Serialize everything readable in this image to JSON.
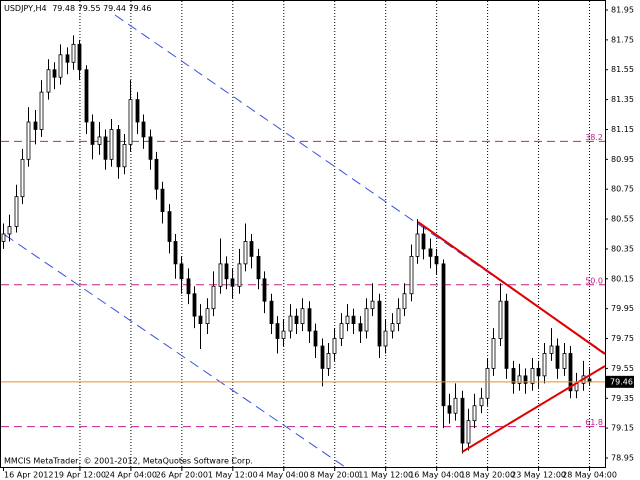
{
  "chart_data": {
    "type": "candlestick",
    "title": "USDJPY,H4",
    "footer": "MMCIS MetaTrader, © 2001-2012, MetaQuotes Software Corp.",
    "up_color": "#ffffff",
    "down_color": "#000000",
    "grid": true,
    "ylim": [
      78.95,
      81.95
    ],
    "yticks": [
      81.95,
      81.75,
      81.55,
      81.35,
      81.15,
      80.95,
      80.75,
      80.55,
      80.35,
      80.15,
      79.95,
      79.75,
      79.55,
      79.35,
      79.15,
      78.95
    ],
    "fibo_labels": [
      "38.2",
      "50.0",
      "61.8"
    ],
    "fibo_prices": [
      81.07,
      80.11,
      79.16
    ],
    "categories": [
      "16 Apr 2012",
      null,
      null,
      null,
      null,
      null,
      null,
      null,
      null,
      null,
      null,
      null,
      "19 Apr 12:00",
      null,
      null,
      null,
      null,
      null,
      null,
      null,
      "24 Apr 04:00",
      null,
      null,
      null,
      null,
      null,
      null,
      null,
      "26 Apr 20:00",
      null,
      null,
      null,
      null,
      null,
      null,
      null,
      "1 May 12:00",
      null,
      null,
      null,
      null,
      null,
      null,
      null,
      "4 May 04:00",
      null,
      null,
      null,
      null,
      null,
      null,
      null,
      "8 May 20:00",
      null,
      null,
      null,
      null,
      null,
      null,
      null,
      "11 May 12:00",
      null,
      null,
      null,
      null,
      null,
      null,
      null,
      "16 May 04:00",
      null,
      null,
      null,
      null,
      null,
      null,
      null,
      "18 May 20:00",
      null,
      null,
      null,
      null,
      null,
      null,
      null,
      "23 May 12:00",
      null,
      null,
      null,
      null,
      null,
      null,
      null,
      "28 May 04:00"
    ],
    "candles": [
      [
        80.4,
        80.52,
        80.35,
        80.45
      ],
      [
        80.45,
        80.58,
        80.4,
        80.5
      ],
      [
        80.5,
        80.78,
        80.46,
        80.7
      ],
      [
        80.7,
        81.02,
        80.65,
        80.95
      ],
      [
        80.95,
        81.3,
        80.9,
        81.2
      ],
      [
        81.2,
        81.28,
        81.05,
        81.15
      ],
      [
        81.15,
        81.48,
        81.1,
        81.4
      ],
      [
        81.4,
        81.62,
        81.35,
        81.55
      ],
      [
        81.55,
        81.6,
        81.42,
        81.5
      ],
      [
        81.5,
        81.72,
        81.45,
        81.65
      ],
      [
        81.65,
        81.7,
        81.52,
        81.6
      ],
      [
        81.6,
        81.78,
        81.55,
        81.72
      ],
      [
        81.72,
        81.75,
        81.48,
        81.55
      ],
      [
        81.55,
        81.58,
        81.12,
        81.2
      ],
      [
        81.2,
        81.25,
        80.95,
        81.05
      ],
      [
        81.05,
        81.2,
        80.98,
        81.1
      ],
      [
        81.1,
        81.15,
        80.88,
        80.95
      ],
      [
        80.95,
        81.22,
        80.9,
        81.15
      ],
      [
        81.15,
        81.18,
        80.82,
        80.9
      ],
      [
        80.9,
        81.12,
        80.85,
        81.05
      ],
      [
        81.05,
        81.48,
        81.0,
        81.35
      ],
      [
        81.35,
        81.4,
        81.12,
        81.2
      ],
      [
        81.2,
        81.25,
        81.02,
        81.1
      ],
      [
        81.1,
        81.15,
        80.88,
        80.95
      ],
      [
        80.95,
        81.0,
        80.68,
        80.75
      ],
      [
        80.75,
        80.8,
        80.52,
        80.6
      ],
      [
        80.6,
        80.65,
        80.32,
        80.4
      ],
      [
        80.4,
        80.45,
        80.15,
        80.25
      ],
      [
        80.25,
        80.3,
        80.05,
        80.15
      ],
      [
        80.15,
        80.22,
        79.98,
        80.05
      ],
      [
        80.05,
        80.1,
        79.82,
        79.9
      ],
      [
        79.9,
        79.98,
        79.68,
        79.85
      ],
      [
        79.85,
        80.02,
        79.78,
        79.95
      ],
      [
        79.95,
        80.2,
        79.9,
        80.1
      ],
      [
        80.1,
        80.42,
        80.05,
        80.25
      ],
      [
        80.25,
        80.3,
        80.08,
        80.15
      ],
      [
        80.15,
        80.22,
        80.02,
        80.1
      ],
      [
        80.1,
        80.35,
        80.05,
        80.25
      ],
      [
        80.25,
        80.52,
        80.2,
        80.4
      ],
      [
        80.4,
        80.45,
        80.22,
        80.3
      ],
      [
        80.3,
        80.35,
        80.08,
        80.15
      ],
      [
        80.15,
        80.2,
        79.92,
        80.0
      ],
      [
        80.0,
        80.05,
        79.78,
        79.85
      ],
      [
        79.85,
        79.9,
        79.65,
        79.75
      ],
      [
        79.75,
        79.88,
        79.7,
        79.8
      ],
      [
        79.8,
        79.98,
        79.75,
        79.9
      ],
      [
        79.9,
        79.95,
        79.78,
        79.85
      ],
      [
        79.85,
        80.02,
        79.8,
        79.95
      ],
      [
        79.95,
        80.0,
        79.72,
        79.8
      ],
      [
        79.8,
        79.85,
        79.62,
        79.7
      ],
      [
        79.7,
        79.75,
        79.43,
        79.55
      ],
      [
        79.55,
        79.72,
        79.5,
        79.65
      ],
      [
        79.65,
        79.82,
        79.6,
        79.75
      ],
      [
        79.75,
        79.92,
        79.7,
        79.85
      ],
      [
        79.85,
        79.98,
        79.8,
        79.9
      ],
      [
        79.9,
        79.95,
        79.78,
        79.85
      ],
      [
        79.85,
        79.9,
        79.72,
        79.8
      ],
      [
        79.8,
        80.02,
        79.75,
        79.95
      ],
      [
        79.95,
        80.12,
        79.9,
        80.0
      ],
      [
        80.0,
        80.05,
        79.62,
        79.7
      ],
      [
        79.7,
        79.88,
        79.65,
        79.8
      ],
      [
        79.8,
        79.92,
        79.75,
        79.85
      ],
      [
        79.85,
        80.02,
        79.8,
        79.95
      ],
      [
        79.95,
        80.12,
        79.9,
        80.05
      ],
      [
        80.05,
        80.38,
        80.0,
        80.3
      ],
      [
        80.3,
        80.55,
        80.25,
        80.45
      ],
      [
        80.45,
        80.5,
        80.28,
        80.35
      ],
      [
        80.35,
        80.42,
        80.22,
        80.3
      ],
      [
        80.3,
        80.35,
        80.18,
        80.25
      ],
      [
        80.25,
        80.28,
        79.15,
        79.3
      ],
      [
        79.3,
        79.38,
        79.18,
        79.25
      ],
      [
        79.25,
        79.45,
        79.2,
        79.35
      ],
      [
        79.35,
        79.4,
        78.98,
        79.05
      ],
      [
        79.05,
        79.28,
        79.0,
        79.2
      ],
      [
        79.2,
        79.38,
        79.15,
        79.3
      ],
      [
        79.3,
        79.42,
        79.25,
        79.35
      ],
      [
        79.35,
        79.62,
        79.3,
        79.55
      ],
      [
        79.55,
        79.82,
        79.5,
        79.75
      ],
      [
        79.75,
        80.12,
        79.7,
        80.0
      ],
      [
        80.0,
        80.05,
        79.48,
        79.55
      ],
      [
        79.55,
        79.6,
        79.38,
        79.45
      ],
      [
        79.45,
        79.58,
        79.4,
        79.5
      ],
      [
        79.5,
        79.55,
        79.38,
        79.45
      ],
      [
        79.45,
        79.62,
        79.4,
        79.55
      ],
      [
        79.55,
        79.6,
        79.42,
        79.5
      ],
      [
        79.5,
        79.72,
        79.45,
        79.65
      ],
      [
        79.65,
        79.82,
        79.6,
        79.7
      ],
      [
        79.7,
        79.75,
        79.48,
        79.55
      ],
      [
        79.55,
        79.72,
        79.5,
        79.65
      ],
      [
        79.65,
        79.7,
        79.35,
        79.4
      ],
      [
        79.4,
        79.52,
        79.35,
        79.45
      ],
      [
        79.45,
        79.6,
        79.4,
        79.5
      ],
      [
        79.48,
        79.55,
        79.44,
        79.46
      ]
    ]
  }
}
